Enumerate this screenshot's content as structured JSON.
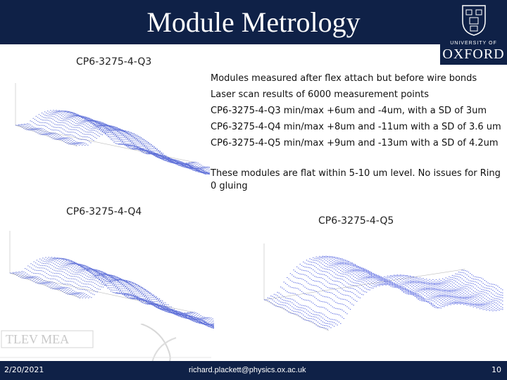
{
  "header": {
    "title": "Module Metrology",
    "logo": {
      "university_line": "UNIVERSITY OF",
      "name": "OXFORD"
    }
  },
  "plots": [
    {
      "label": "CP6-3275-4-Q3",
      "point_color": "#3a4fd0"
    },
    {
      "label": "CP6-3275-4-Q4",
      "point_color": "#3a4fd0"
    },
    {
      "label": "CP6-3275-4-Q5",
      "point_color": "#2a3fd8"
    }
  ],
  "bullets": [
    "Modules measured after flex attach but before wire bonds",
    "Laser scan results of 6000 measurement points",
    "CP6-3275-4-Q3 min/max +6um and -4um, with a SD of 3um",
    "CP6-3275-4-Q4  min/max +8um and -11um with a SD of 3.6 um",
    "CP6-3275-4-Q5 min/max +9um and -13um  with a SD of 4.2um"
  ],
  "note": "These modules are flat within 5-10 um level. No issues for Ring 0 gluing",
  "watermark_text": "TLEV  MEA",
  "footer": {
    "date": "2/20/2021",
    "email": "richard.plackett@physics.ox.ac.uk",
    "page": "10"
  },
  "colors": {
    "brand_navy": "#0f2147",
    "scatter_blue": "#3a4fd0"
  }
}
